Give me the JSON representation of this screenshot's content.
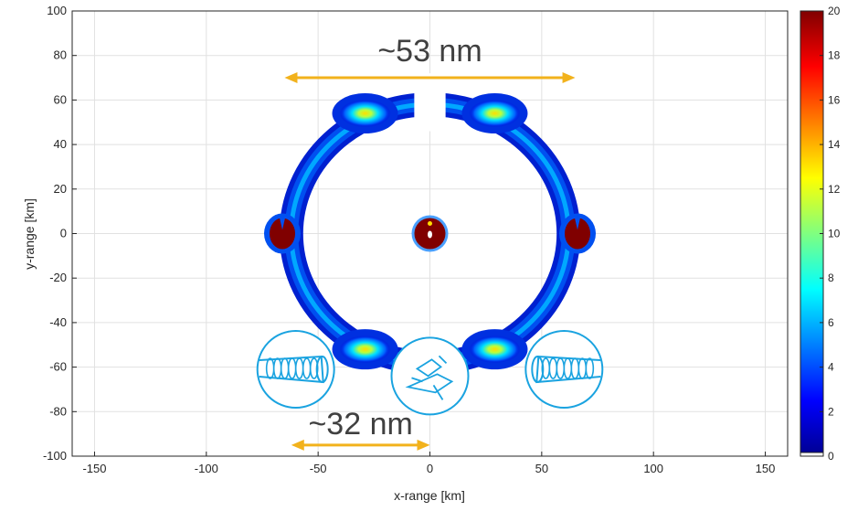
{
  "chart_data": {
    "type": "heatmap",
    "xlabel": "x-range [km]",
    "ylabel": "y-range [km]",
    "xlim": [
      -160,
      160
    ],
    "ylim": [
      -100,
      100
    ],
    "x_ticks": [
      -150,
      -100,
      -50,
      0,
      50,
      100,
      150
    ],
    "y_ticks": [
      -100,
      -80,
      -60,
      -40,
      -20,
      0,
      20,
      40,
      60,
      80,
      100
    ],
    "grid": true,
    "colorbar": {
      "range": [
        0,
        20
      ],
      "ticks": [
        0,
        2,
        4,
        6,
        8,
        10,
        12,
        14,
        16,
        18,
        20
      ],
      "colormap": "jet"
    },
    "ring": {
      "center": [
        0,
        0
      ],
      "radius_x": 62,
      "radius_y": 58
    },
    "hotspots": [
      {
        "x": -29,
        "y": 54
      },
      {
        "x": 29,
        "y": 54
      },
      {
        "x": -29,
        "y": -52
      },
      {
        "x": 29,
        "y": -52
      },
      {
        "x": -66,
        "y": 0
      },
      {
        "x": 66,
        "y": 0
      },
      {
        "x": 0,
        "y": 0
      }
    ],
    "annotations": [
      {
        "text": "~53 nm",
        "from_x": -65,
        "to_x": 65,
        "at_y": 70,
        "color": "#f2b21c"
      },
      {
        "text": "~32 nm",
        "from_x": -62,
        "to_x": 0,
        "at_y": -95,
        "color": "#f2b21c"
      }
    ],
    "icon_circles": [
      {
        "icon": "filament-icon",
        "x": -60,
        "y": -61
      },
      {
        "icon": "molecule-icon",
        "x": 0,
        "y": -64
      },
      {
        "icon": "filament-icon",
        "x": 60,
        "y": -61
      }
    ]
  }
}
